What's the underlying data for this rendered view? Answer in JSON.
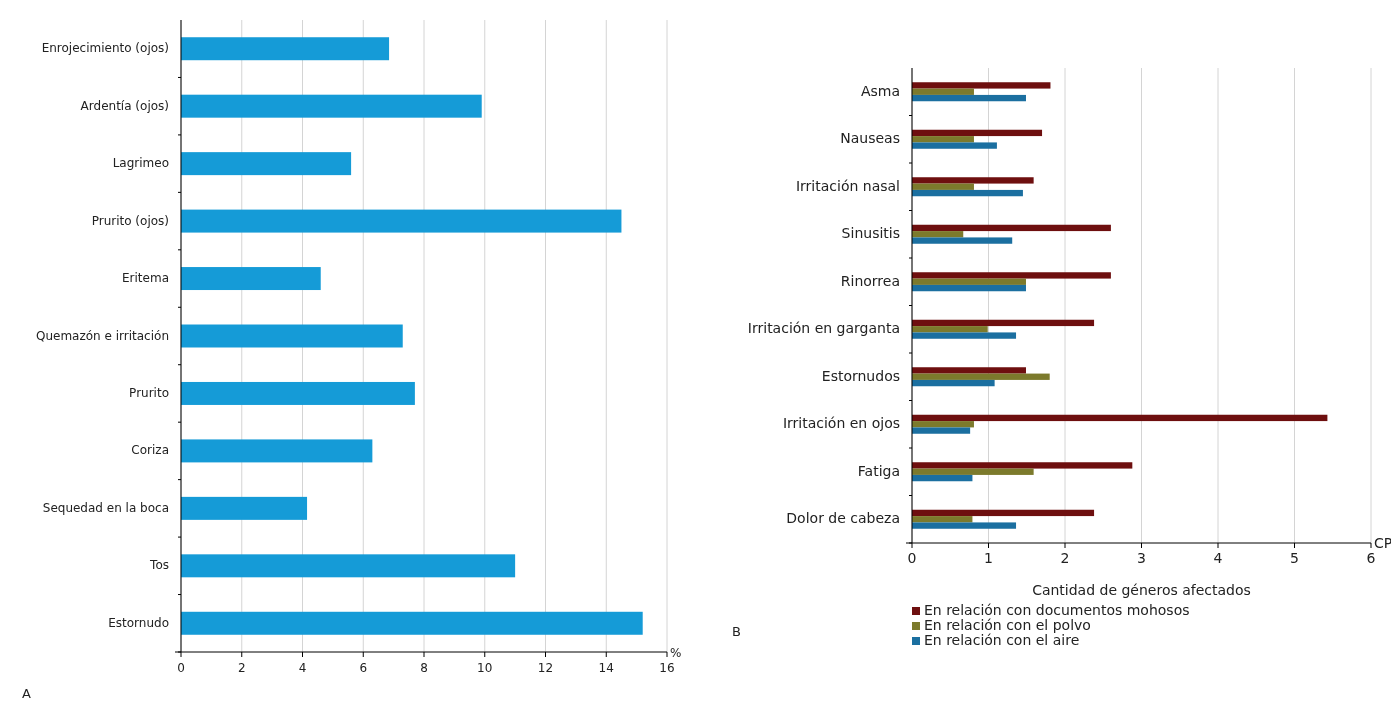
{
  "chart_data": [
    {
      "type": "bar",
      "orientation": "horizontal",
      "categories": [
        "Enrojecimiento (ojos)",
        "Ardentía (ojos)",
        "Lagrimeo",
        "Prurito (ojos)",
        "Eritema",
        "Quemazón e irritación",
        "Prurito",
        "Coriza",
        "Sequedad en la boca",
        "Tos",
        "Estornudo"
      ],
      "values": [
        6.85,
        9.9,
        5.6,
        14.5,
        4.6,
        7.3,
        7.7,
        6.3,
        4.15,
        11.0,
        15.2
      ],
      "color": "#159bd7",
      "xlim": [
        0,
        16
      ],
      "xticks": [
        0,
        2,
        4,
        6,
        8,
        10,
        12,
        14,
        16
      ],
      "grid": "x",
      "annotations": [
        "A",
        "%"
      ]
    },
    {
      "type": "bar",
      "orientation": "horizontal",
      "categories": [
        "Asma",
        "Nauseas",
        "Irritación nasal",
        "Sinusitis",
        "Rinorrea",
        "Irritación en garganta",
        "Estornudos",
        "Irritación en ojos",
        "Fatiga",
        "Dolor de cabeza"
      ],
      "series": [
        {
          "name": "En relación con documentos mohosos",
          "color": "#6e0f0f",
          "values": [
            1.81,
            1.7,
            1.59,
            2.6,
            2.6,
            2.38,
            1.49,
            5.43,
            2.88,
            2.38
          ]
        },
        {
          "name": "En relación con el polvo",
          "color": "#7c7a2c",
          "values": [
            0.81,
            0.81,
            0.81,
            0.67,
            1.49,
            0.99,
            1.8,
            0.81,
            1.59,
            0.79
          ]
        },
        {
          "name": "En relación con el aire",
          "color": "#1b6fa0",
          "values": [
            1.49,
            1.11,
            1.45,
            1.31,
            1.49,
            1.36,
            1.08,
            0.76,
            0.79,
            1.36
          ]
        }
      ],
      "xlim": [
        0,
        6
      ],
      "xticks": [
        0,
        1,
        2,
        3,
        4,
        5,
        6
      ],
      "grid": "x",
      "xlabel": "Cantidad de géneros afectados",
      "legend": "bottom",
      "annotations": [
        "B",
        "CP"
      ]
    }
  ]
}
